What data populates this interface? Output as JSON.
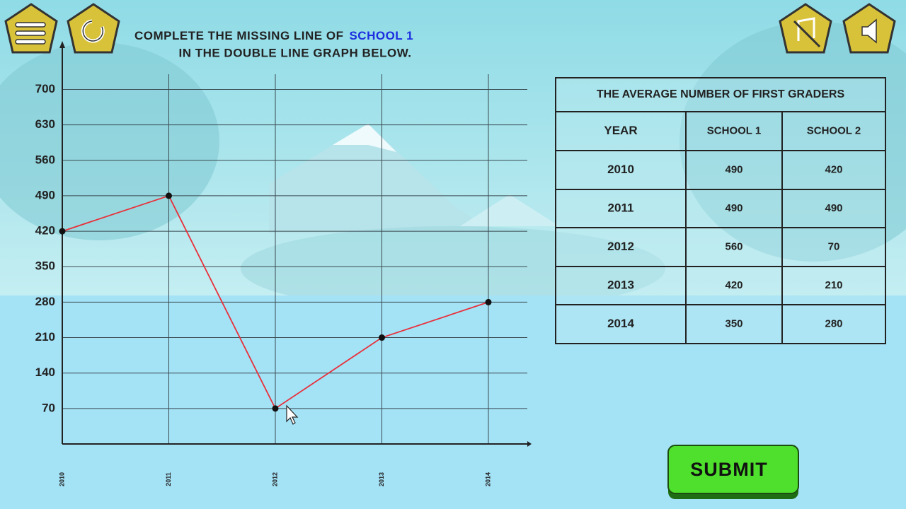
{
  "instruction": {
    "line1": "COMPLETE THE MISSING LINE OF",
    "highlight": "SCHOOL 1",
    "line2": "IN THE DOUBLE LINE GRAPH BELOW."
  },
  "chart_data": {
    "type": "line",
    "categories": [
      "2010",
      "2011",
      "2012",
      "2013",
      "2014"
    ],
    "values": [
      420,
      490,
      70,
      210,
      280
    ],
    "color": "#e8303a",
    "ylim": [
      0,
      790
    ],
    "yticks": [
      70,
      140,
      210,
      280,
      350,
      420,
      490,
      560,
      630,
      700
    ],
    "grid": true
  },
  "table": {
    "title": "THE AVERAGE NUMBER OF FIRST GRADERS",
    "header": [
      "YEAR",
      "SCHOOL 1",
      "SCHOOL 2"
    ],
    "rows": [
      [
        "2010",
        490,
        420
      ],
      [
        "2011",
        490,
        490
      ],
      [
        "2012",
        560,
        70
      ],
      [
        "2013",
        420,
        210
      ],
      [
        "2014",
        350,
        280
      ]
    ]
  },
  "submit": "SUBMIT"
}
